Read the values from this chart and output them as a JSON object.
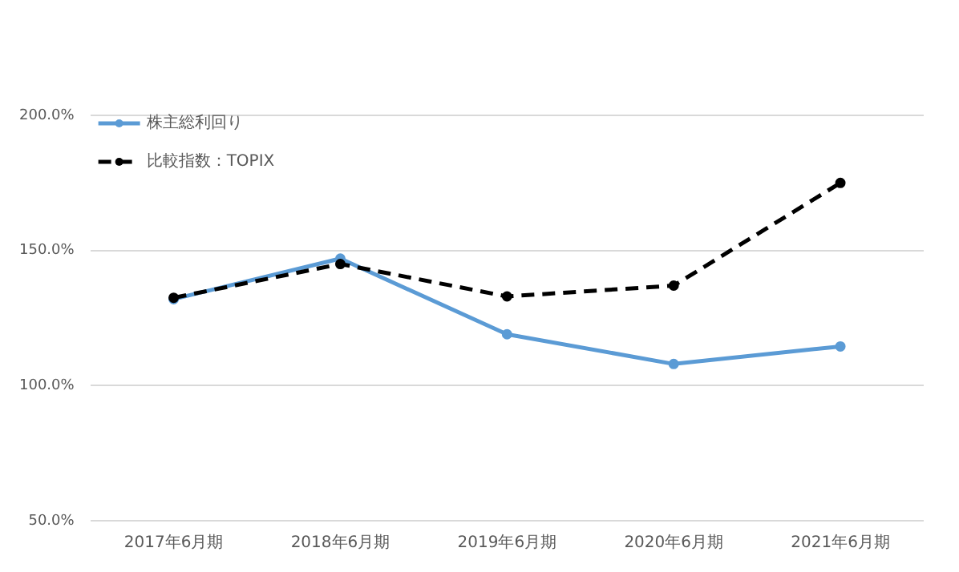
{
  "chart_data": {
    "type": "line",
    "categories": [
      "2017年6月期",
      "2018年6月期",
      "2019年6月期",
      "2020年6月期",
      "2021年6月期"
    ],
    "series": [
      {
        "name": "株主総利回り",
        "color": "#5b9bd5",
        "values": [
          132,
          147,
          119,
          108,
          114.5
        ],
        "line_style": "solid"
      },
      {
        "name": "比較指数：TOPIX",
        "color": "#000000",
        "values": [
          132.5,
          145,
          133,
          137,
          175
        ],
        "line_style": "dashed"
      }
    ],
    "ylim": [
      50,
      200
    ],
    "yticks": [
      {
        "value": 50,
        "label": "50.0%"
      },
      {
        "value": 100,
        "label": "100.0%"
      },
      {
        "value": 150,
        "label": "150.0%"
      },
      {
        "value": 200,
        "label": "200.0%"
      }
    ],
    "grid": "y",
    "legend": "top left",
    "marker": "circle"
  }
}
